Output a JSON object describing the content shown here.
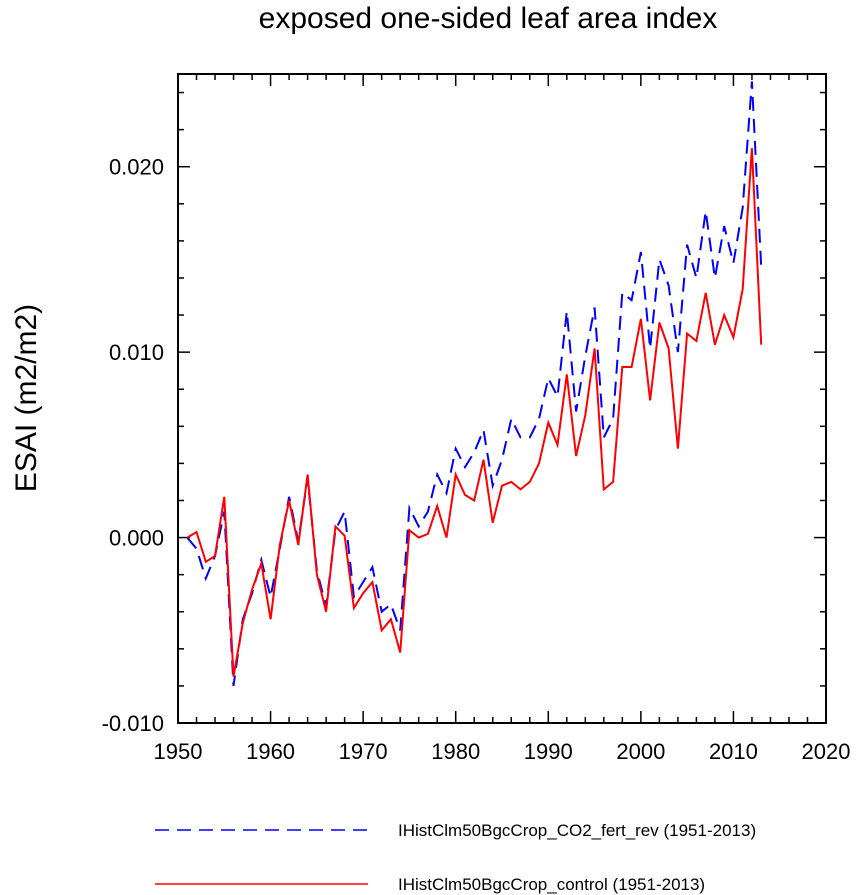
{
  "chart_data": {
    "type": "line",
    "title": "exposed one-sided leaf area index",
    "ylabel": "ESAI  (m2/m2)",
    "xlabel": "",
    "xlim": [
      1950,
      2020
    ],
    "ylim": [
      -0.01,
      0.025
    ],
    "x_ticks": [
      1950,
      1960,
      1970,
      1980,
      1990,
      2000,
      2010,
      2020
    ],
    "x_tick_labels": [
      "1950",
      "1960",
      "1970",
      "1980",
      "1990",
      "2000",
      "2010",
      "2020"
    ],
    "y_ticks": [
      -0.01,
      0.0,
      0.01,
      0.02
    ],
    "y_tick_labels": [
      "-0.010",
      "0.000",
      "0.010",
      "0.020"
    ],
    "grid": false,
    "legend_position": "bottom",
    "x": [
      1951,
      1952,
      1953,
      1954,
      1955,
      1956,
      1957,
      1958,
      1959,
      1960,
      1961,
      1962,
      1963,
      1964,
      1965,
      1966,
      1967,
      1968,
      1969,
      1970,
      1971,
      1972,
      1973,
      1974,
      1975,
      1976,
      1977,
      1978,
      1979,
      1980,
      1981,
      1982,
      1983,
      1984,
      1985,
      1986,
      1987,
      1988,
      1989,
      1990,
      1991,
      1992,
      1993,
      1994,
      1995,
      1996,
      1997,
      1998,
      1999,
      2000,
      2001,
      2002,
      2003,
      2004,
      2005,
      2006,
      2007,
      2008,
      2009,
      2010,
      2011,
      2012,
      2013
    ],
    "series": [
      {
        "name": "IHistClm50BgcCrop_CO2_fert_rev (1951-2013)",
        "color": "#0000ff",
        "style": "dashed",
        "values": [
          0.0,
          -0.0006,
          -0.0022,
          -0.001,
          0.0014,
          -0.008,
          -0.0044,
          -0.003,
          -0.0012,
          -0.0032,
          -0.0006,
          0.0022,
          -0.0002,
          0.0032,
          -0.0018,
          -0.0037,
          0.0004,
          0.0014,
          -0.0032,
          -0.0024,
          -0.0016,
          -0.004,
          -0.0036,
          -0.005,
          0.0016,
          0.0006,
          0.0014,
          0.0034,
          0.0024,
          0.0048,
          0.0038,
          0.0046,
          0.0058,
          0.0028,
          0.0042,
          0.0064,
          0.0054,
          0.0054,
          0.0064,
          0.0086,
          0.0076,
          0.0122,
          0.0068,
          0.0098,
          0.0124,
          0.0054,
          0.0064,
          0.0132,
          0.0128,
          0.0154,
          0.0102,
          0.015,
          0.0136,
          0.01,
          0.0158,
          0.014,
          0.0176,
          0.014,
          0.0168,
          0.0148,
          0.0178,
          0.0246,
          0.0146
        ]
      },
      {
        "name": "IHistClm50BgcCrop_control (1951-2013)",
        "color": "#ff0000",
        "style": "solid",
        "values": [
          0.0,
          0.0003,
          -0.0013,
          -0.001,
          0.0022,
          -0.0075,
          -0.0046,
          -0.0028,
          -0.0014,
          -0.0044,
          -0.0004,
          0.002,
          -0.0004,
          0.0034,
          -0.002,
          -0.004,
          0.0006,
          0.0001,
          -0.0038,
          -0.003,
          -0.0024,
          -0.005,
          -0.0044,
          -0.0062,
          0.0004,
          0.0,
          0.0002,
          0.0017,
          0.0,
          0.0034,
          0.0023,
          0.002,
          0.0042,
          0.0008,
          0.0028,
          0.003,
          0.0026,
          0.003,
          0.004,
          0.0062,
          0.005,
          0.0088,
          0.0044,
          0.0066,
          0.0102,
          0.0026,
          0.003,
          0.0092,
          0.0092,
          0.0118,
          0.0074,
          0.0116,
          0.0102,
          0.0048,
          0.011,
          0.0106,
          0.0132,
          0.0104,
          0.012,
          0.0108,
          0.0134,
          0.021,
          0.0104
        ]
      }
    ]
  }
}
